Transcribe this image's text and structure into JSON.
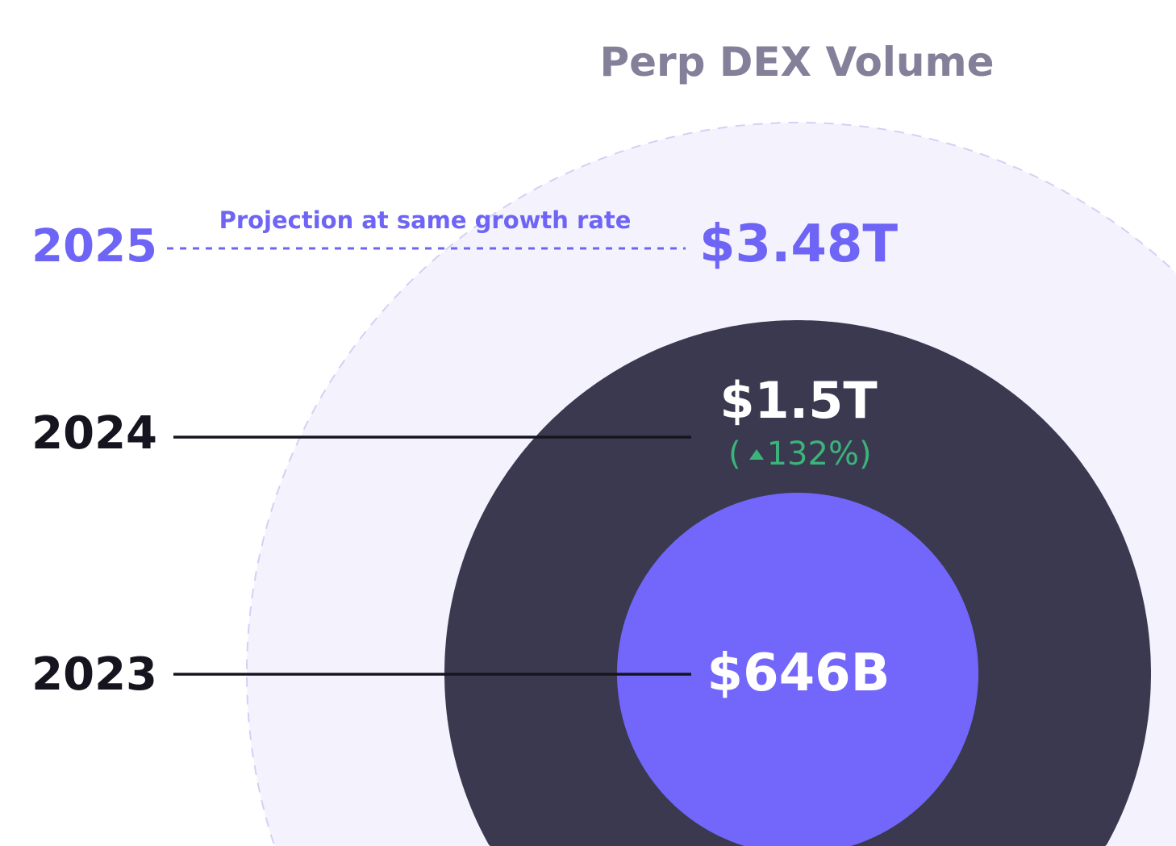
{
  "chart_data": {
    "type": "bubble",
    "title": "Perp DEX Volume",
    "series": [
      {
        "year": "2025",
        "label": "$3.48T",
        "value_billion": 3480,
        "projected": true,
        "note": "Projection at same growth rate"
      },
      {
        "year": "2024",
        "label": "$1.5T",
        "value_billion": 1500,
        "change": "132%",
        "change_direction": "up"
      },
      {
        "year": "2023",
        "label": "$646B",
        "value_billion": 646
      }
    ],
    "colors": {
      "title": "#84809a",
      "projection": "#6e64f5",
      "projection_fill": "#f4f3fd",
      "projection_border": "#d4d0f5",
      "y2024": "#3a3950",
      "y2023": "#7367fb",
      "positive": "#3cb37a",
      "year_text": "#16151f",
      "value_text": "#ffffff"
    }
  }
}
